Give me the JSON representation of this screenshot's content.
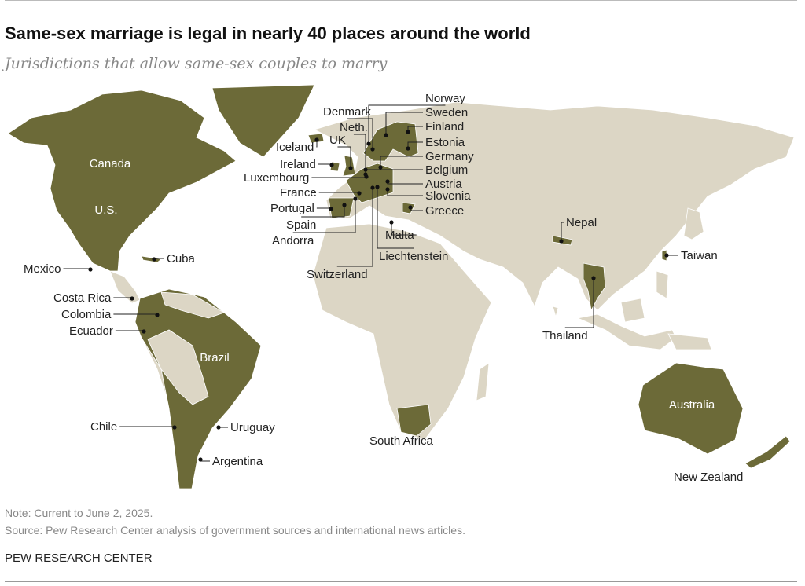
{
  "header": {
    "title": "Same-sex marriage is legal in nearly 40 places around the world",
    "subtitle": "Jurisdictions that allow same-sex couples to marry"
  },
  "map": {
    "colors": {
      "legal": "#6c6a38",
      "other_land": "#dcd6c5",
      "border": "#ffffff"
    },
    "labels": [
      "Canada",
      "U.S.",
      "Brazil",
      "Australia",
      "Mexico",
      "Cuba",
      "Costa Rica",
      "Colombia",
      "Ecuador",
      "Chile",
      "Uruguay",
      "Argentina",
      "Iceland",
      "Ireland",
      "Luxembourg",
      "France",
      "Portugal",
      "Spain",
      "Andorra",
      "Switzerland",
      "Liechtenstein",
      "Malta",
      "UK",
      "Neth.",
      "Denmark",
      "Norway",
      "Sweden",
      "Finland",
      "Estonia",
      "Germany",
      "Belgium",
      "Austria",
      "Slovenia",
      "Greece",
      "Nepal",
      "Taiwan",
      "Thailand",
      "South Africa",
      "New Zealand"
    ]
  },
  "footer": {
    "note": "Note: Current to June 2, 2025.",
    "source": "Source: Pew Research Center analysis of government sources and international news articles.",
    "brand": "PEW RESEARCH CENTER"
  }
}
